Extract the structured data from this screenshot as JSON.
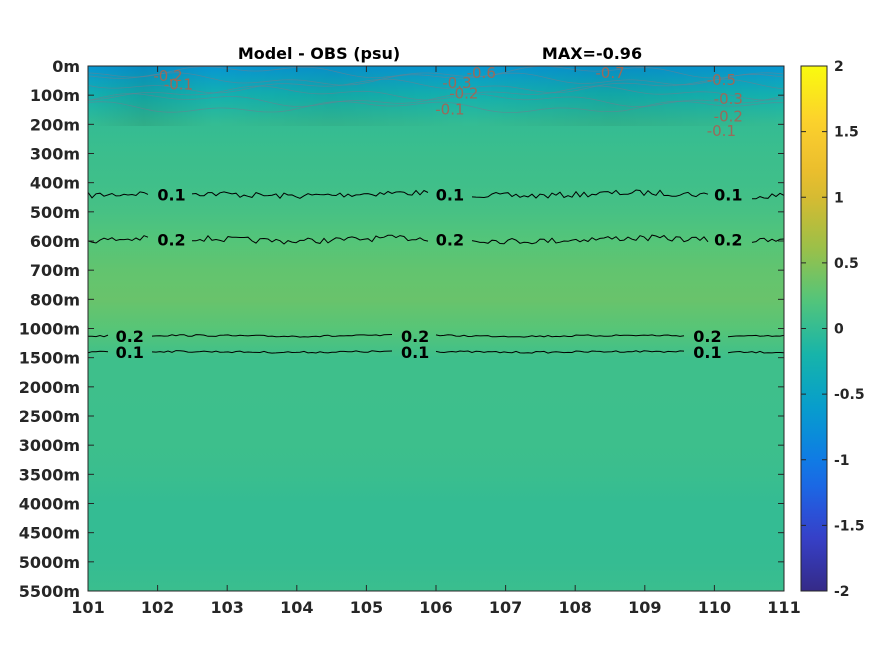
{
  "chart_data": {
    "type": "heatmap",
    "title": "Model - OBS (psu)",
    "annotation": "MAX=-0.96",
    "xlabel": "",
    "ylabel": "",
    "x_ticks": [
      "101",
      "102",
      "103",
      "104",
      "105",
      "106",
      "107",
      "108",
      "109",
      "110",
      "111"
    ],
    "xlim": [
      101,
      111
    ],
    "y_ticks": [
      "0m",
      "100m",
      "200m",
      "300m",
      "400m",
      "500m",
      "600m",
      "700m",
      "800m",
      "1000m",
      "1500m",
      "2000m",
      "2500m",
      "3000m",
      "3500m",
      "4000m",
      "4500m",
      "5000m",
      "5500m"
    ],
    "colorbar": {
      "colormap": "parula",
      "range": [
        -2,
        2
      ],
      "ticks": [
        "2",
        "1.5",
        "1",
        "0.5",
        "0",
        "-0.5",
        "-1",
        "-1.5",
        "-2"
      ]
    },
    "field": {
      "rows": [
        {
          "depth": "0m",
          "value": -0.7
        },
        {
          "depth": "100m",
          "value": -0.25
        },
        {
          "depth": "200m",
          "value": 0.0
        },
        {
          "depth": "300m",
          "value": 0.05
        },
        {
          "depth": "400m",
          "value": 0.08
        },
        {
          "depth": "500m",
          "value": 0.13
        },
        {
          "depth": "600m",
          "value": 0.22
        },
        {
          "depth": "700m",
          "value": 0.3
        },
        {
          "depth": "800m",
          "value": 0.34
        },
        {
          "depth": "1000m",
          "value": 0.24
        },
        {
          "depth": "1500m",
          "value": 0.07
        },
        {
          "depth": "2000m",
          "value": 0.07
        },
        {
          "depth": "2500m",
          "value": 0.06
        },
        {
          "depth": "3000m",
          "value": 0.06
        },
        {
          "depth": "3500m",
          "value": 0.04
        },
        {
          "depth": "4000m",
          "value": 0.0
        },
        {
          "depth": "4500m",
          "value": 0.0
        },
        {
          "depth": "5000m",
          "value": 0.01
        },
        {
          "depth": "5500m",
          "value": 0.04
        }
      ]
    },
    "contours": [
      {
        "level": "0.1",
        "depth_index": 4.4,
        "label_x": [
          102.2,
          106.2,
          110.2
        ],
        "color": "#000000",
        "roughness": 1
      },
      {
        "level": "0.2",
        "depth_index": 5.95,
        "label_x": [
          102.2,
          106.2,
          110.2
        ],
        "color": "#000000",
        "roughness": 1
      },
      {
        "level": "0.2",
        "depth_index": 9.25,
        "label_x": [
          101.6,
          105.7,
          109.9
        ],
        "color": "#000000",
        "roughness": 0.3
      },
      {
        "level": "0.1",
        "depth_index": 9.8,
        "label_x": [
          101.6,
          105.7,
          109.9
        ],
        "color": "#000000",
        "roughness": 0.3
      }
    ],
    "surface_labels": [
      {
        "text": "-0.2",
        "x": 102.15,
        "depth_index": 0.3
      },
      {
        "text": "-0.1",
        "x": 102.3,
        "depth_index": 0.6
      },
      {
        "text": "-0.6",
        "x": 106.65,
        "depth_index": 0.2
      },
      {
        "text": "-0.3",
        "x": 106.3,
        "depth_index": 0.55
      },
      {
        "text": "-0.2",
        "x": 106.4,
        "depth_index": 0.9
      },
      {
        "text": "-0.1",
        "x": 106.2,
        "depth_index": 1.45
      },
      {
        "text": "-0.7",
        "x": 108.5,
        "depth_index": 0.2
      },
      {
        "text": "-0.5",
        "x": 110.1,
        "depth_index": 0.45
      },
      {
        "text": "-0.3",
        "x": 110.2,
        "depth_index": 1.1
      },
      {
        "text": "-0.2",
        "x": 110.2,
        "depth_index": 1.7
      },
      {
        "text": "-0.1",
        "x": 110.1,
        "depth_index": 2.2
      }
    ]
  }
}
